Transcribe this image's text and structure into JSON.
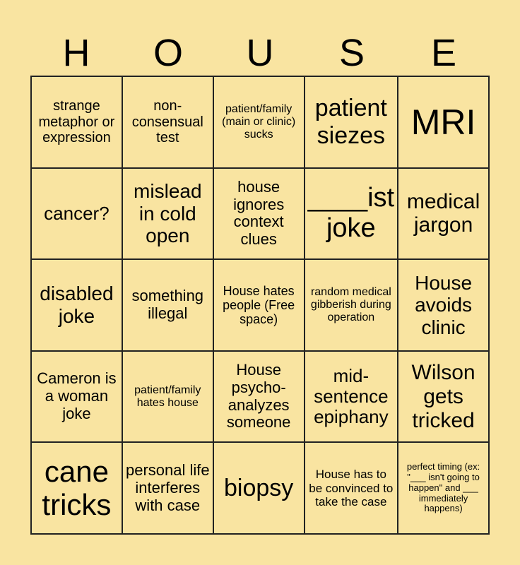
{
  "header": [
    "H",
    "O",
    "U",
    "S",
    "E"
  ],
  "cells": [
    {
      "text": "strange metaphor or expression",
      "size": 20
    },
    {
      "text": "non-consensual test",
      "size": 20
    },
    {
      "text": "patient/family (main or clinic) sucks",
      "size": 16
    },
    {
      "text": "patient siezes",
      "size": 34
    },
    {
      "text": "MRI",
      "size": 50
    },
    {
      "text": "cancer?",
      "size": 26
    },
    {
      "text": "mislead in cold open",
      "size": 28
    },
    {
      "text": "house ignores context clues",
      "size": 22
    },
    {
      "text": "____ist joke",
      "size": 38
    },
    {
      "text": "medical jargon",
      "size": 30
    },
    {
      "text": "disabled joke",
      "size": 28
    },
    {
      "text": "something illegal",
      "size": 22
    },
    {
      "text": "House hates people (Free space)",
      "size": 18
    },
    {
      "text": "random medical gibberish during operation",
      "size": 16
    },
    {
      "text": "House avoids clinic",
      "size": 28
    },
    {
      "text": "Cameron is a woman joke",
      "size": 22
    },
    {
      "text": "patient/family hates house",
      "size": 16
    },
    {
      "text": "House psycho-analyzes someone",
      "size": 22
    },
    {
      "text": "mid-sentence epiphany",
      "size": 26
    },
    {
      "text": "Wilson gets tricked",
      "size": 30
    },
    {
      "text": "cane tricks",
      "size": 42
    },
    {
      "text": "personal life interferes with case",
      "size": 22
    },
    {
      "text": "biopsy",
      "size": 34
    },
    {
      "text": "House has to be convinced to take the case",
      "size": 17
    },
    {
      "text": "perfect timing (ex: \"___ isn't going to happen\" and ___ immediately happens)",
      "size": 13
    }
  ]
}
